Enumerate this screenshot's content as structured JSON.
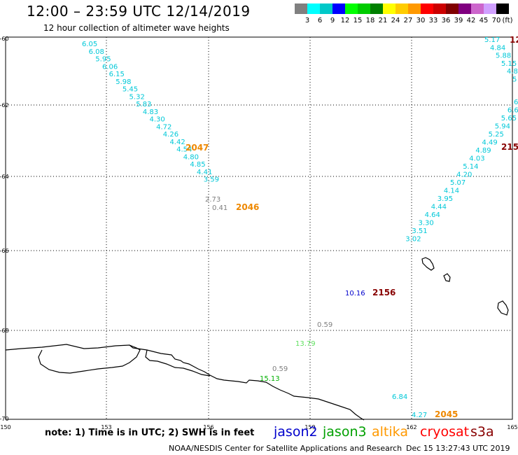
{
  "header": {
    "title": "12:00 – 23:59 UTC 12/14/2019",
    "subtitle": "12 hour collection of altimeter wave heights"
  },
  "legend": {
    "unit_label": "(ft)",
    "bins": [
      {
        "value": "3",
        "color": "#808080"
      },
      {
        "value": "6",
        "color": "#00ffff"
      },
      {
        "value": "9",
        "color": "#00c8c8"
      },
      {
        "value": "12",
        "color": "#0000ff"
      },
      {
        "value": "15",
        "color": "#00ff00"
      },
      {
        "value": "18",
        "color": "#00cc00"
      },
      {
        "value": "21",
        "color": "#008000"
      },
      {
        "value": "24",
        "color": "#ffff00"
      },
      {
        "value": "27",
        "color": "#ffcc00"
      },
      {
        "value": "30",
        "color": "#ff9900"
      },
      {
        "value": "33",
        "color": "#ff0000"
      },
      {
        "value": "36",
        "color": "#cc0000"
      },
      {
        "value": "39",
        "color": "#800000"
      },
      {
        "value": "42",
        "color": "#800080"
      },
      {
        "value": "45",
        "color": "#cc66cc"
      },
      {
        "value": "70",
        "color": "#d0a0ff"
      },
      {
        "value": "",
        "color": "#000000"
      }
    ]
  },
  "map": {
    "lon_labels": [
      "150",
      "153",
      "156",
      "159",
      "162",
      "165"
    ],
    "lat_labels": [
      "-60",
      "-62",
      "-64",
      "-66",
      "-68",
      "-70"
    ],
    "colors": {
      "cyan": "#00c8d8",
      "gray": "#808080",
      "green": "#00b000",
      "lightgreen": "#60e060",
      "blue": "#0000cc",
      "orange": "#ee8800",
      "darkred": "#880000"
    },
    "track1": {
      "labels": [
        "6.05",
        "6.08",
        "5.95",
        "6.06",
        "6.15",
        "5.98",
        "5.45",
        "5.32",
        "5.83",
        "4.83",
        "4.30",
        "4.72",
        "4.26",
        "4.42",
        "4.54",
        "4.80",
        "4.85",
        "4.41",
        "3.59"
      ],
      "gray_labels": [
        "2.73",
        "0.41"
      ],
      "time_labels": [
        "2047",
        "2046"
      ]
    },
    "track2": {
      "top_labels": [
        "5.17",
        "4.84",
        "5.88",
        "5.15",
        "4.8",
        "5"
      ],
      "top_time": "12",
      "labels": [
        "6",
        "6.6",
        "5.65",
        "5.94",
        "5.25",
        "4.49",
        "4.89",
        "4.03",
        "5.14",
        "4.20",
        "5.07",
        "4.14",
        "3.95",
        "4.44",
        "4.64",
        "3.30",
        "3.51",
        "3.02"
      ],
      "time_label": "215"
    },
    "scattered": {
      "blue_value": "10.16",
      "time_2156": "2156",
      "gray_1": "0.59",
      "green_1": "13.79",
      "gray_2": "0.59",
      "green_2": "15.13",
      "cyan_1": "6.84",
      "cyan_2": "4.27",
      "time_2045": "2045"
    }
  },
  "footer": {
    "note": "note: 1) Time is in UTC; 2) SWH is in feet",
    "satellites": [
      {
        "name": "jason2",
        "color": "#0000cc"
      },
      {
        "name": "jason3",
        "color": "#00a000"
      },
      {
        "name": "altika",
        "color": "#ff9900"
      },
      {
        "name": "cryosat",
        "color": "#ff0000"
      },
      {
        "name": "s3a",
        "color": "#880000"
      }
    ],
    "credit": "NOAA/NESDIS Center for Satellite Applications and Research",
    "timestamp": "Dec 15 13:27:43 UTC 2019"
  }
}
